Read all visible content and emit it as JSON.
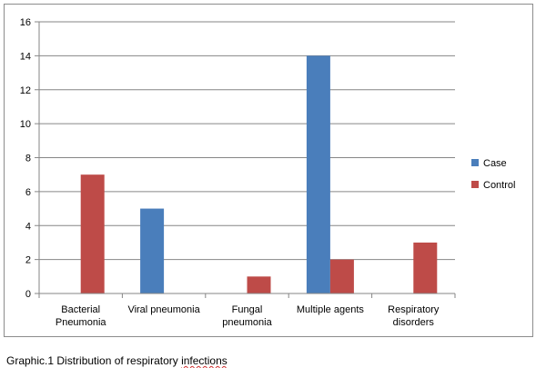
{
  "chart_data": {
    "type": "bar",
    "categories": [
      [
        "Bacterial",
        "Pneumonia"
      ],
      [
        "Viral pneumonia"
      ],
      [
        "Fungal",
        "pneumonia"
      ],
      [
        "Multiple agents"
      ],
      [
        "Respiratory",
        "disorders"
      ]
    ],
    "series": [
      {
        "name": "Case",
        "color": "#4a7ebb",
        "values": [
          0,
          5,
          0,
          14,
          0
        ]
      },
      {
        "name": "Control",
        "color": "#be4b48",
        "values": [
          7,
          0,
          1,
          2,
          3
        ]
      }
    ],
    "ylim": [
      0,
      16
    ],
    "yticks": [
      0,
      2,
      4,
      6,
      8,
      10,
      12,
      14,
      16
    ],
    "grid": true,
    "legend_position": "right"
  },
  "caption": {
    "prefix": "Graphic.1 Distribution of respiratory ",
    "underlined": "infections"
  }
}
